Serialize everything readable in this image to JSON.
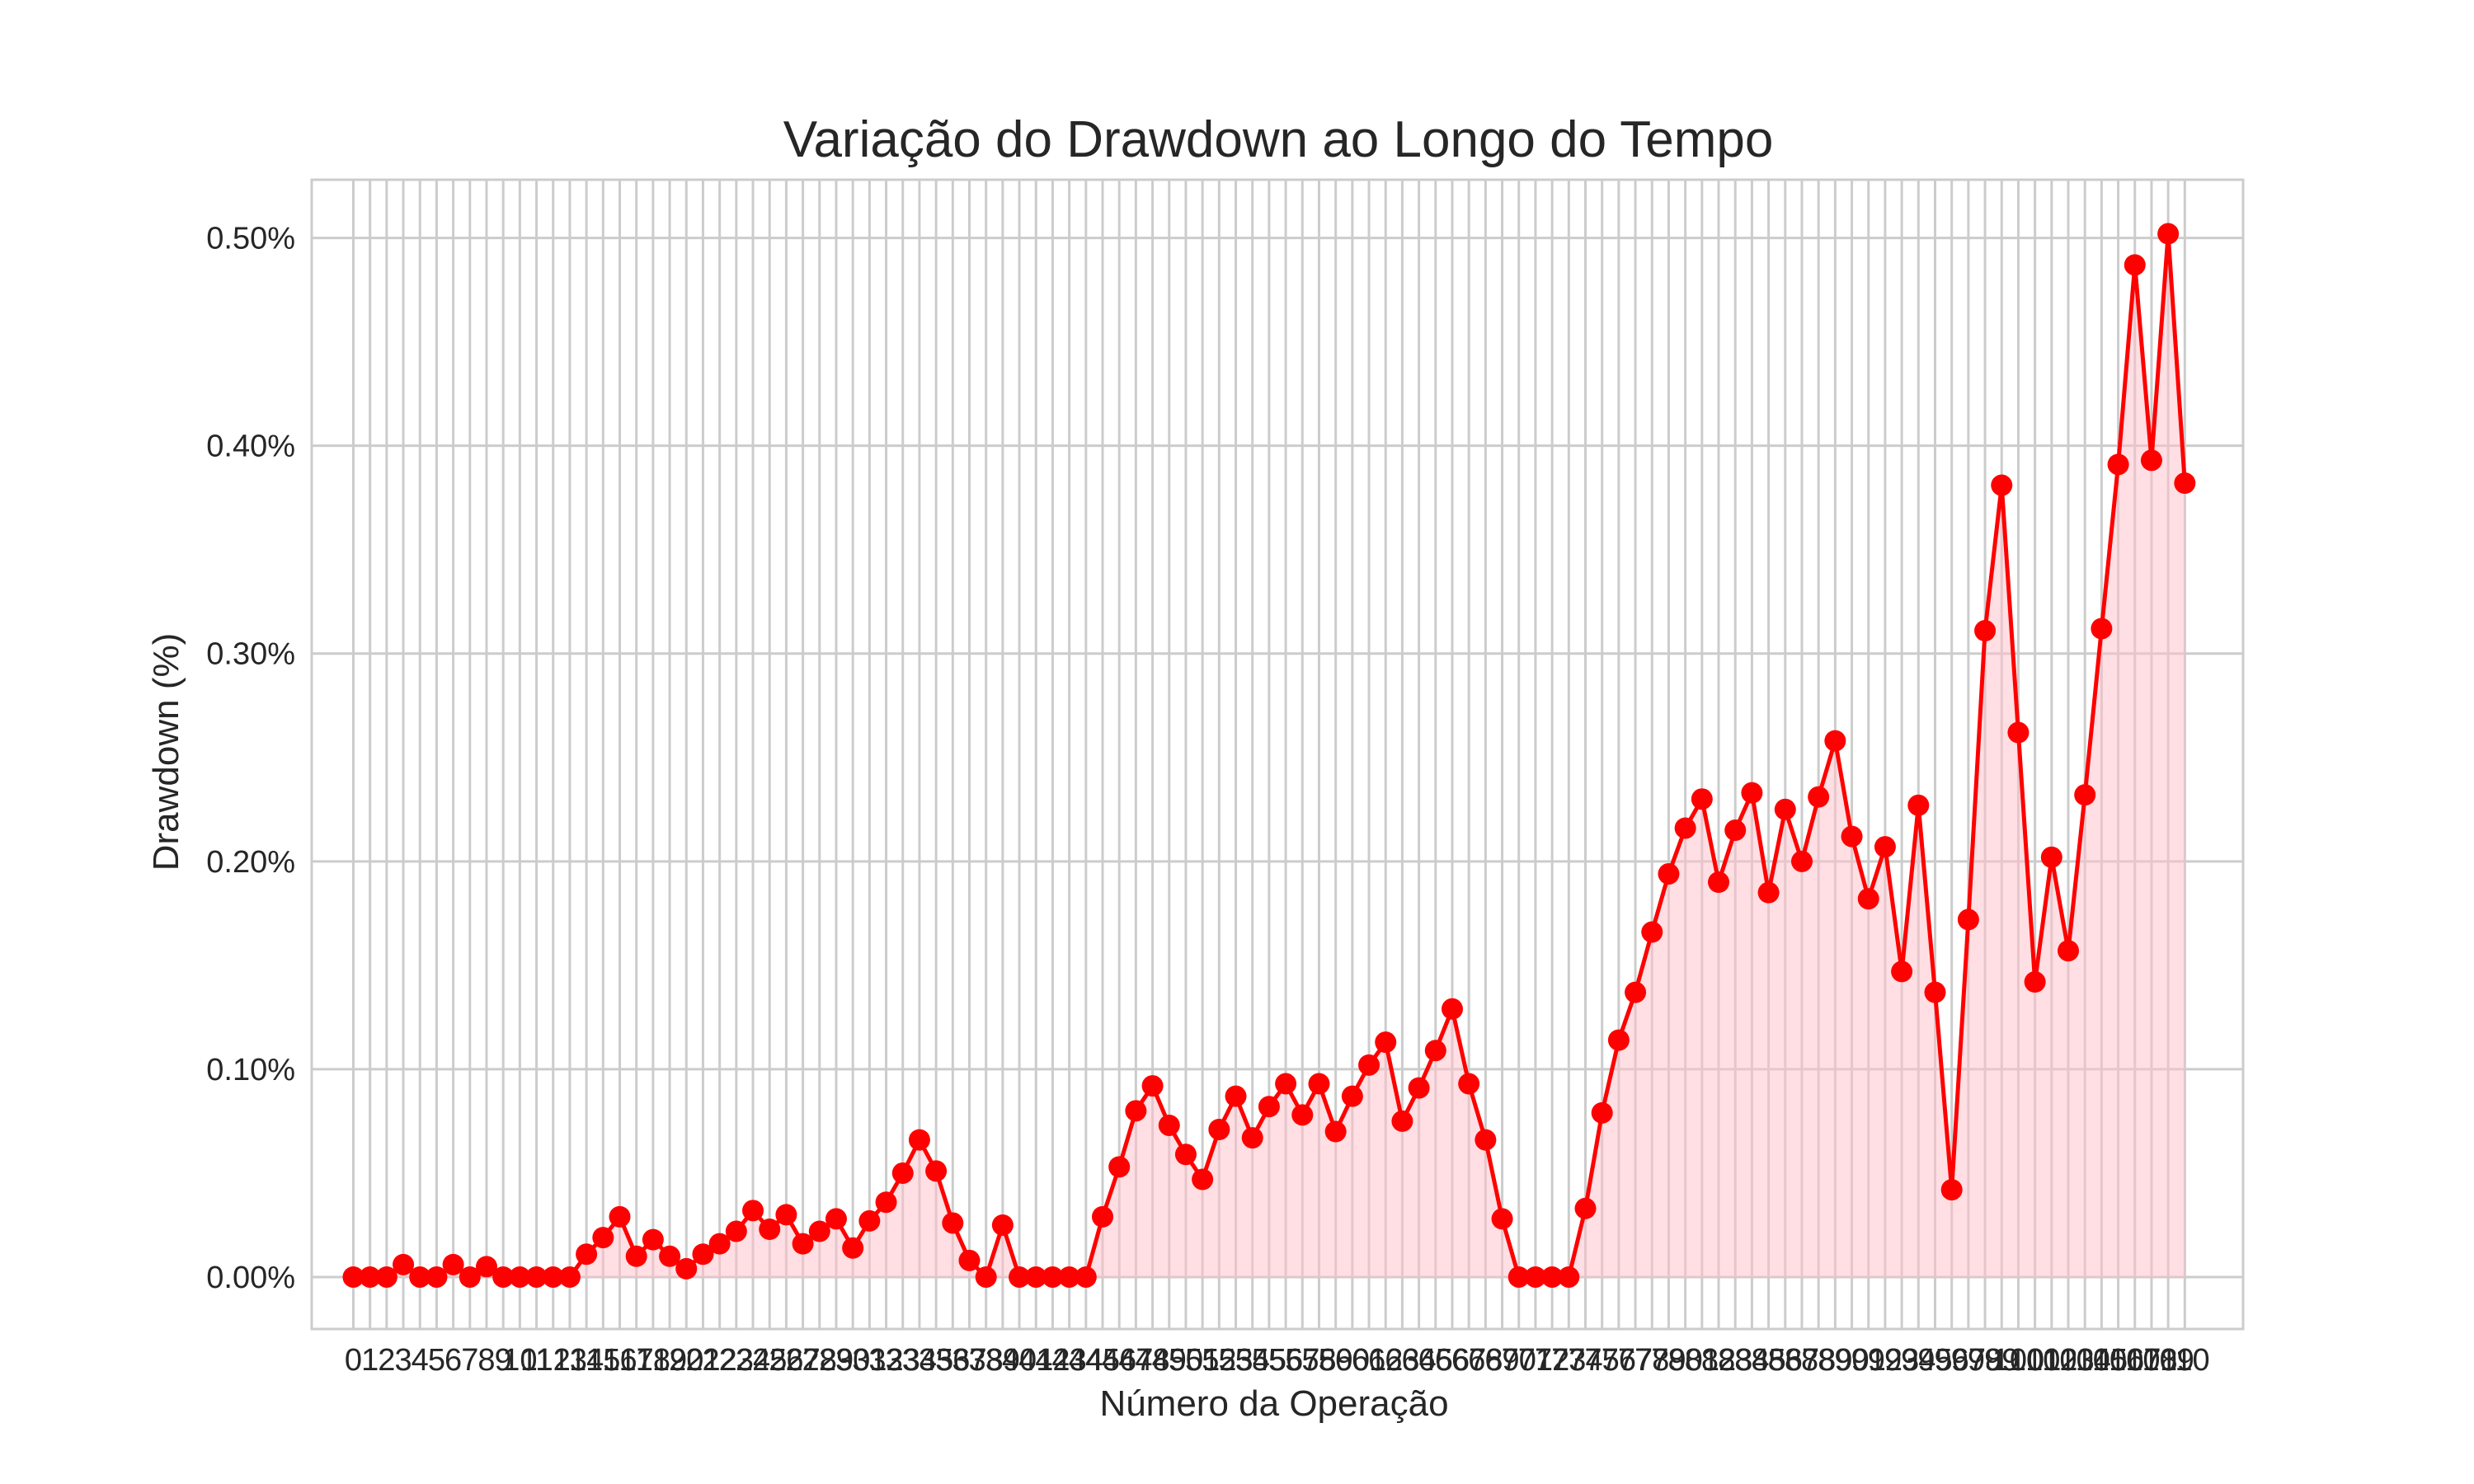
{
  "chart_data": {
    "type": "line",
    "title": "Variação do Drawdown ao Longo do Tempo",
    "xlabel": "Número da Operação",
    "ylabel": "Drawdown (%)",
    "y_unit": "%",
    "x": [
      0,
      1,
      2,
      3,
      4,
      5,
      6,
      7,
      8,
      9,
      10,
      11,
      12,
      13,
      14,
      15,
      16,
      17,
      18,
      19,
      20,
      21,
      22,
      23,
      24,
      25,
      26,
      27,
      28,
      29,
      30,
      31,
      32,
      33,
      34,
      35,
      36,
      37,
      38,
      39,
      40,
      41,
      42,
      43,
      44,
      45,
      46,
      47,
      48,
      49,
      50,
      51,
      52,
      53,
      54,
      55,
      56,
      57,
      58,
      59,
      60,
      61,
      62,
      63,
      64,
      65,
      66,
      67,
      68,
      69,
      70,
      71,
      72,
      73,
      74,
      75,
      76,
      77,
      78,
      79,
      80,
      81,
      82,
      83,
      84,
      85,
      86,
      87,
      88,
      89,
      90,
      91,
      92,
      93,
      94,
      95,
      96,
      97,
      98,
      99,
      100,
      101,
      102,
      103,
      104,
      105,
      106,
      107,
      108,
      109,
      110
    ],
    "xlim": [
      -2.5,
      113.5
    ],
    "ylim": [
      -0.025,
      0.528
    ],
    "y_ticks": [
      0.0,
      0.1,
      0.2,
      0.3,
      0.4,
      0.5
    ],
    "y_tick_labels": [
      "0.00%",
      "0.10%",
      "0.20%",
      "0.30%",
      "0.40%",
      "0.50%"
    ],
    "grid": true,
    "series": [
      {
        "values": [
          0.0,
          0.0,
          0.0,
          0.006,
          0.0,
          0.0,
          0.006,
          0.0,
          0.005,
          0.0,
          0.0,
          0.0,
          0.0,
          0.0,
          0.011,
          0.019,
          0.029,
          0.01,
          0.018,
          0.01,
          0.004,
          0.011,
          0.016,
          0.022,
          0.032,
          0.023,
          0.03,
          0.016,
          0.022,
          0.028,
          0.014,
          0.027,
          0.036,
          0.05,
          0.066,
          0.051,
          0.026,
          0.008,
          0.0,
          0.025,
          0.0,
          0.0,
          0.0,
          0.0,
          0.0,
          0.029,
          0.053,
          0.08,
          0.092,
          0.073,
          0.059,
          0.047,
          0.071,
          0.087,
          0.067,
          0.082,
          0.093,
          0.078,
          0.093,
          0.07,
          0.087,
          0.102,
          0.113,
          0.075,
          0.091,
          0.109,
          0.129,
          0.093,
          0.066,
          0.028,
          0.0,
          0.0,
          0.0,
          0.0,
          0.033,
          0.079,
          0.114,
          0.137,
          0.166,
          0.194,
          0.216,
          0.23,
          0.19,
          0.215,
          0.233,
          0.185,
          0.225,
          0.2,
          0.231,
          0.258,
          0.212,
          0.182,
          0.207,
          0.147,
          0.227,
          0.137,
          0.042,
          0.172,
          0.311,
          0.381,
          0.262,
          0.142,
          0.202,
          0.157,
          0.232,
          0.312,
          0.391,
          0.487,
          0.393,
          0.502,
          0.382
        ],
        "color": "#ff0000",
        "fill_color": "#ffc0c8"
      }
    ]
  }
}
